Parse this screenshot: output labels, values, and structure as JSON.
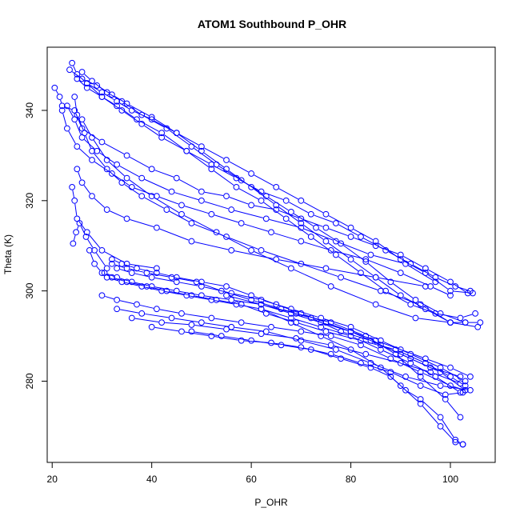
{
  "chart_data": {
    "type": "line",
    "title": "ATOM1 Southbound P_OHR",
    "xlabel": "P_OHR",
    "ylabel": "Theta (K)",
    "xlim": [
      19,
      109
    ],
    "ylim": [
      262,
      354
    ],
    "xticks": [
      20,
      40,
      60,
      80,
      100
    ],
    "yticks": [
      280,
      300,
      320,
      340
    ],
    "grid": false,
    "legend": "none",
    "line_color": "#0000ff",
    "marker": "open-circle",
    "series": [
      {
        "x": [
          20.5,
          21.5,
          22,
          24.5,
          26,
          30,
          35,
          40,
          45,
          50,
          55,
          60,
          65,
          70,
          75,
          80,
          85,
          90,
          95,
          100,
          103.5
        ],
        "y": [
          345,
          343,
          341,
          340,
          336,
          333,
          330,
          327,
          325,
          322,
          321,
          319,
          318,
          316,
          314,
          312,
          310,
          308,
          305,
          302,
          299.5
        ]
      },
      {
        "x": [
          24,
          25,
          27,
          30,
          33,
          36,
          40,
          45,
          50,
          55,
          60,
          65,
          70,
          75,
          80,
          85,
          90,
          95,
          100,
          104.5
        ],
        "y": [
          350.5,
          348,
          346,
          344,
          342,
          340,
          338,
          335,
          332,
          329,
          326,
          323,
          320,
          317,
          314,
          311,
          307,
          304,
          300,
          299.5
        ]
      },
      {
        "x": [
          23.5,
          26,
          29,
          32,
          35,
          40,
          45,
          50,
          55,
          60,
          65,
          70,
          75,
          80,
          85,
          90,
          95,
          100,
          105.5
        ],
        "y": [
          349,
          347,
          345.5,
          343.5,
          341.5,
          338.5,
          335,
          331,
          327,
          323,
          319,
          315,
          311,
          307,
          303,
          299,
          296,
          293,
          292
        ]
      },
      {
        "x": [
          25,
          27,
          30,
          33,
          37,
          42,
          47,
          52,
          57,
          62,
          67,
          72,
          77,
          82,
          87,
          92,
          97,
          102,
          105
        ],
        "y": [
          347,
          345,
          343,
          341,
          338,
          335,
          331,
          327,
          323,
          320,
          316,
          312,
          308,
          304,
          300,
          297,
          295,
          294,
          295
        ]
      },
      {
        "x": [
          26,
          28,
          31,
          34,
          38,
          43,
          48,
          53,
          58,
          63,
          68,
          73,
          78,
          83,
          88,
          93,
          98,
          103,
          106
        ],
        "y": [
          348.5,
          346.5,
          344,
          342,
          339,
          336,
          332,
          328,
          324.5,
          321,
          317.5,
          314,
          310.5,
          306.5,
          302,
          298,
          295,
          293,
          293
        ]
      },
      {
        "x": [
          27,
          30,
          34,
          38,
          42,
          47,
          52,
          57,
          62,
          67,
          72,
          77,
          82,
          87,
          92,
          97,
          101,
          104
        ],
        "y": [
          346,
          343,
          340,
          337,
          334,
          331,
          328,
          325,
          322,
          320,
          317,
          315,
          312,
          309,
          306,
          303,
          301,
          300
        ]
      },
      {
        "x": [
          24.5,
          25,
          26.5,
          28,
          31,
          34,
          38,
          43,
          48,
          55,
          62,
          70,
          78,
          86,
          94,
          100,
          103
        ],
        "y": [
          343,
          339,
          335,
          331,
          327,
          324,
          321,
          318,
          315,
          312,
          309,
          306,
          303,
          300,
          297,
          293,
          293
        ]
      },
      {
        "x": [
          22,
          23,
          25,
          28,
          32,
          36,
          41,
          46,
          52,
          58,
          64,
          70,
          76,
          83,
          90,
          96,
          100
        ],
        "y": [
          340,
          336,
          332,
          329,
          326,
          323,
          321,
          319,
          317,
          315,
          313,
          311,
          309,
          307,
          304,
          301,
          299
        ]
      },
      {
        "x": [
          23,
          24.5,
          26,
          29,
          33,
          38,
          44,
          50,
          56,
          63,
          70,
          77,
          84,
          91,
          97
        ],
        "y": [
          341,
          338,
          334,
          331,
          328,
          325,
          322,
          320,
          318,
          316,
          314,
          311,
          308,
          306,
          302
        ]
      },
      {
        "x": [
          26,
          28,
          31,
          35,
          40,
          46,
          53,
          60,
          68,
          76,
          85,
          93,
          100
        ],
        "y": [
          338,
          334,
          329,
          325,
          321,
          317,
          313,
          309,
          305,
          301,
          297,
          294,
          293
        ]
      },
      {
        "x": [
          25,
          26,
          28,
          31,
          35,
          41,
          48,
          56,
          65,
          75,
          85,
          95
        ],
        "y": [
          327,
          324,
          321,
          318,
          316,
          314,
          311,
          309,
          307,
          305,
          303,
          301
        ]
      },
      {
        "x": [
          24,
          24.5,
          25,
          27,
          30,
          35,
          41
        ],
        "y": [
          323,
          320,
          316,
          313,
          309,
          306,
          305
        ]
      },
      {
        "x": [
          24.2,
          24.8,
          25.5,
          26.8,
          28.5,
          31
        ],
        "y": [
          310.5,
          313,
          315,
          312,
          309,
          305
        ]
      },
      {
        "x": [
          27.5,
          28.5,
          30,
          32,
          35,
          39,
          43,
          48,
          53,
          58,
          63,
          69,
          75,
          82,
          89,
          95,
          100,
          103
        ],
        "y": [
          309,
          306,
          304,
          303,
          302,
          301,
          300,
          299,
          298,
          297,
          295,
          293,
          291,
          289,
          287,
          284,
          281,
          279
        ]
      },
      {
        "x": [
          32,
          34,
          37,
          41,
          45,
          50,
          55,
          60,
          65,
          70,
          75,
          80,
          85,
          90,
          95,
          100,
          104
        ],
        "y": [
          307,
          306,
          305,
          304,
          303,
          302,
          301,
          299,
          297,
          295,
          293,
          291,
          289,
          287,
          285,
          283,
          281
        ]
      },
      {
        "x": [
          32,
          35,
          39,
          44,
          49,
          54,
          60,
          66,
          72,
          78,
          84,
          90,
          96,
          102
        ],
        "y": [
          306,
          305,
          304,
          303,
          302,
          300,
          298,
          296,
          294,
          291,
          289,
          286,
          283,
          281
        ]
      },
      {
        "x": [
          33,
          36,
          40,
          45,
          50,
          56,
          62,
          68,
          74,
          80,
          86,
          92,
          98,
          103
        ],
        "y": [
          305,
          304,
          303,
          302,
          301,
          299.5,
          298,
          296,
          294,
          292,
          289,
          286,
          283,
          280
        ]
      },
      {
        "x": [
          30.5,
          33,
          36,
          40,
          45,
          50,
          56,
          62,
          68,
          74,
          80,
          86,
          92,
          98,
          103
        ],
        "y": [
          304,
          303,
          302,
          301,
          300,
          299,
          298,
          297,
          295,
          293,
          291,
          288,
          285,
          282,
          278
        ]
      },
      {
        "x": [
          31,
          34,
          38,
          42,
          47,
          52,
          57,
          62,
          68,
          74,
          80,
          86,
          92,
          97,
          102
        ],
        "y": [
          303,
          302,
          301,
          300,
          299,
          298,
          297,
          296,
          294,
          292,
          290,
          287,
          284,
          281,
          277.5
        ]
      },
      {
        "x": [
          30,
          33,
          37,
          41,
          46,
          52,
          58,
          64,
          70,
          76,
          82,
          88,
          94,
          100,
          103
        ],
        "y": [
          299,
          298,
          297,
          296,
          295,
          294,
          293,
          292,
          291,
          290,
          288,
          285,
          282,
          279,
          278
        ]
      },
      {
        "x": [
          33,
          38,
          44,
          50,
          56,
          63,
          70,
          77,
          84,
          91,
          98,
          104
        ],
        "y": [
          296,
          295,
          294,
          293,
          292,
          291,
          289,
          287,
          284,
          281,
          279,
          278
        ]
      },
      {
        "x": [
          36,
          42,
          48,
          55,
          62,
          69,
          76,
          83,
          90,
          96,
          102
        ],
        "y": [
          294,
          293,
          292.5,
          291.5,
          290.5,
          289.5,
          288,
          286,
          284,
          282,
          279.5
        ]
      },
      {
        "x": [
          40,
          46,
          52,
          58,
          64,
          70,
          76,
          82,
          88,
          94,
          99,
          102.5
        ],
        "y": [
          292,
          291,
          290,
          289,
          288.5,
          287.5,
          286,
          284,
          282,
          279,
          277,
          277.5
        ]
      },
      {
        "x": [
          48,
          54,
          60,
          66,
          72,
          78,
          84,
          88,
          91,
          94,
          98,
          101,
          102.5
        ],
        "y": [
          291,
          290,
          289,
          288,
          287,
          285,
          283,
          281,
          278,
          276,
          272,
          267,
          266
        ]
      },
      {
        "x": [
          62,
          68,
          74,
          80,
          86,
          90,
          94,
          98,
          101,
          102.5
        ],
        "y": [
          296,
          293,
          290,
          287,
          283,
          279,
          275,
          270,
          266.5,
          266
        ]
      },
      {
        "x": [
          55,
          62,
          69,
          76,
          83,
          89,
          94,
          99,
          102
        ],
        "y": [
          299,
          297,
          295,
          293,
          290,
          286,
          281,
          276,
          272
        ]
      }
    ]
  }
}
